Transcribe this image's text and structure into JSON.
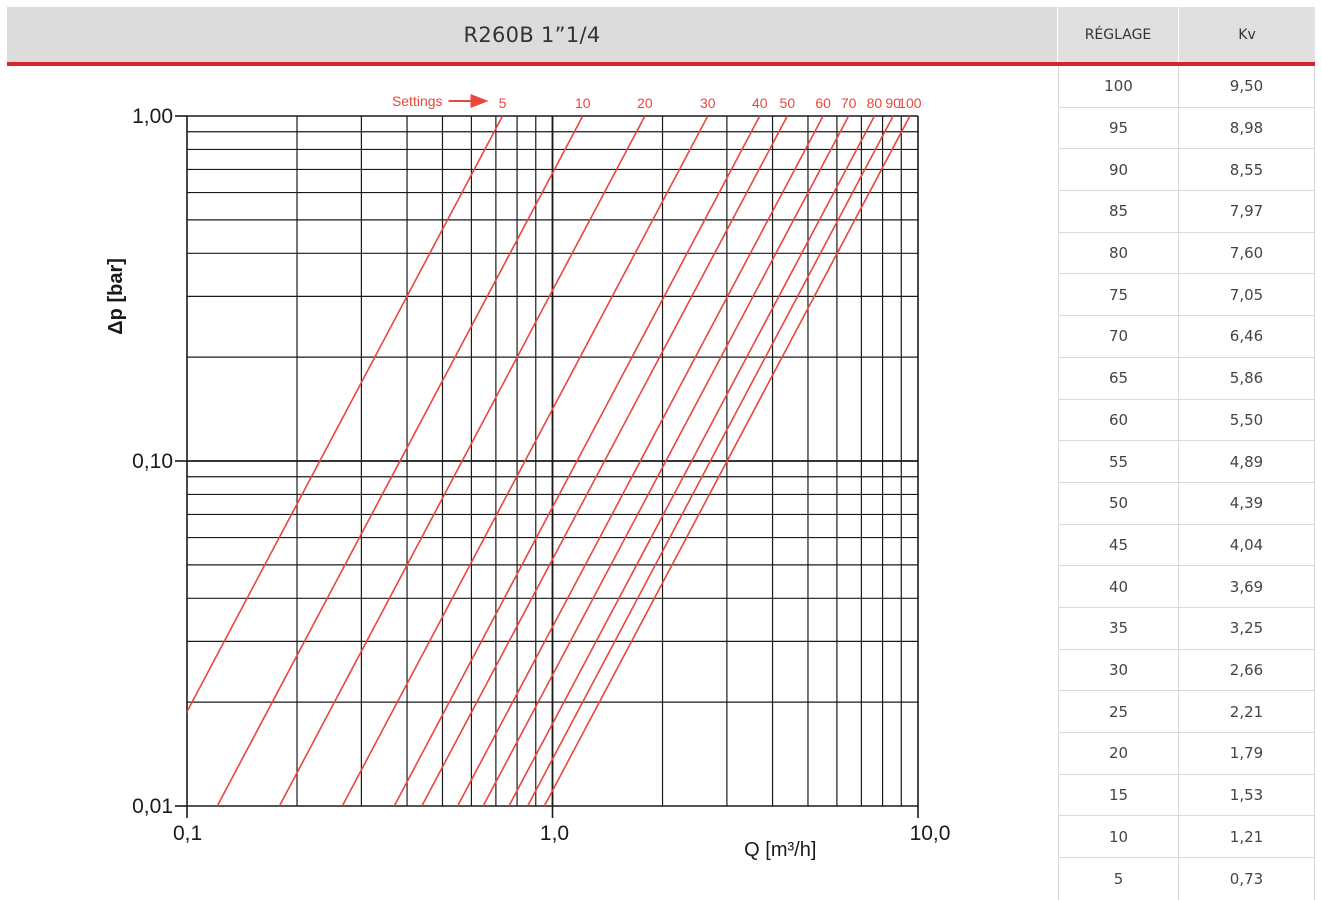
{
  "header": {
    "title": "R260B 1”1/4",
    "col_setting": "RÉGLAGE",
    "col_kv": "Kv"
  },
  "colors": {
    "accent_red": "#d5242b",
    "curve_red": "#e8473d",
    "header_gray": "#dcdcdc"
  },
  "table": {
    "rows": [
      {
        "setting": "100",
        "kv": "9,50"
      },
      {
        "setting": "95",
        "kv": "8,98"
      },
      {
        "setting": "90",
        "kv": "8,55"
      },
      {
        "setting": "85",
        "kv": "7,97"
      },
      {
        "setting": "80",
        "kv": "7,60"
      },
      {
        "setting": "75",
        "kv": "7,05"
      },
      {
        "setting": "70",
        "kv": "6,46"
      },
      {
        "setting": "65",
        "kv": "5,86"
      },
      {
        "setting": "60",
        "kv": "5,50"
      },
      {
        "setting": "55",
        "kv": "4,89"
      },
      {
        "setting": "50",
        "kv": "4,39"
      },
      {
        "setting": "45",
        "kv": "4,04"
      },
      {
        "setting": "40",
        "kv": "3,69"
      },
      {
        "setting": "35",
        "kv": "3,25"
      },
      {
        "setting": "30",
        "kv": "2,66"
      },
      {
        "setting": "25",
        "kv": "2,21"
      },
      {
        "setting": "20",
        "kv": "1,79"
      },
      {
        "setting": "15",
        "kv": "1,53"
      },
      {
        "setting": "10",
        "kv": "1,21"
      },
      {
        "setting": "5",
        "kv": "0,73"
      }
    ]
  },
  "chart_data": {
    "type": "line",
    "xscale": "log",
    "yscale": "log",
    "xlim": [
      0.1,
      10.0
    ],
    "ylim": [
      0.01,
      1.0
    ],
    "xlabel": "Q [m³/h]",
    "ylabel": "Δp [bar]",
    "x_tick_labels": [
      "0,1",
      "1,0",
      "10,0"
    ],
    "y_tick_labels": [
      "1,00",
      "0,10",
      "0,01"
    ],
    "settings_label": "Settings",
    "grid": true,
    "series": [
      {
        "name": "5",
        "kv": 0.73
      },
      {
        "name": "10",
        "kv": 1.21
      },
      {
        "name": "20",
        "kv": 1.79
      },
      {
        "name": "30",
        "kv": 2.66
      },
      {
        "name": "40",
        "kv": 3.69
      },
      {
        "name": "50",
        "kv": 4.39
      },
      {
        "name": "60",
        "kv": 5.5
      },
      {
        "name": "70",
        "kv": 6.46
      },
      {
        "name": "80",
        "kv": 7.6
      },
      {
        "name": "90",
        "kv": 8.55
      },
      {
        "name": "100",
        "kv": 9.5
      }
    ]
  }
}
